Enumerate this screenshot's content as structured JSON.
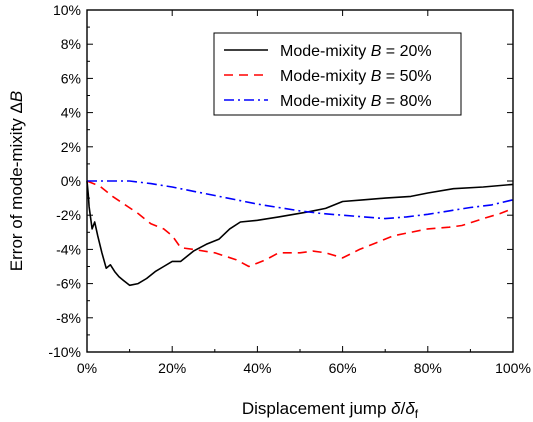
{
  "chart_data": {
    "type": "line",
    "xlabel": "Displacement jump δ/δ_f",
    "ylabel": "Error of mode-mixity ΔB",
    "xlim": [
      0,
      100
    ],
    "ylim": [
      -10,
      10
    ],
    "x_ticks": [
      0,
      20,
      40,
      60,
      80,
      100
    ],
    "y_ticks": [
      -10,
      -8,
      -6,
      -4,
      -2,
      0,
      2,
      4,
      6,
      8,
      10
    ],
    "x_tick_labels": [
      "0%",
      "20%",
      "40%",
      "60%",
      "80%",
      "100%"
    ],
    "y_tick_labels": [
      "-10%",
      "-8%",
      "-6%",
      "-4%",
      "-2%",
      "0%",
      "2%",
      "4%",
      "6%",
      "8%",
      "10%"
    ],
    "legend_position": "top-right",
    "series": [
      {
        "name": "Mode-mixity B = 20%",
        "color": "#000000",
        "style": "solid",
        "points": [
          [
            0,
            0
          ],
          [
            0.3,
            -0.8
          ],
          [
            0.5,
            -1.5
          ],
          [
            1.2,
            -2.8
          ],
          [
            1.8,
            -2.4
          ],
          [
            2.5,
            -3.2
          ],
          [
            3.5,
            -4.2
          ],
          [
            4.5,
            -5.1
          ],
          [
            5.5,
            -4.9
          ],
          [
            6.5,
            -5.3
          ],
          [
            7.5,
            -5.6
          ],
          [
            8.5,
            -5.8
          ],
          [
            10,
            -6.1
          ],
          [
            12,
            -6.0
          ],
          [
            14,
            -5.7
          ],
          [
            16,
            -5.3
          ],
          [
            18,
            -5.0
          ],
          [
            20,
            -4.7
          ],
          [
            22,
            -4.7
          ],
          [
            25,
            -4.1
          ],
          [
            28,
            -3.7
          ],
          [
            31,
            -3.4
          ],
          [
            33.5,
            -2.8
          ],
          [
            36,
            -2.4
          ],
          [
            40,
            -2.3
          ],
          [
            45,
            -2.1
          ],
          [
            52,
            -1.8
          ],
          [
            56,
            -1.6
          ],
          [
            60,
            -1.2
          ],
          [
            65,
            -1.1
          ],
          [
            70,
            -1.0
          ],
          [
            76,
            -0.9
          ],
          [
            80,
            -0.7
          ],
          [
            86,
            -0.45
          ],
          [
            93,
            -0.35
          ],
          [
            100,
            -0.2
          ]
        ]
      },
      {
        "name": "Mode-mixity B = 50%",
        "color": "#ff0000",
        "style": "dashed",
        "points": [
          [
            0,
            0
          ],
          [
            3,
            -0.3
          ],
          [
            6,
            -0.9
          ],
          [
            9,
            -1.4
          ],
          [
            12,
            -1.9
          ],
          [
            15,
            -2.5
          ],
          [
            18,
            -2.8
          ],
          [
            20,
            -3.2
          ],
          [
            22,
            -3.9
          ],
          [
            25,
            -4.0
          ],
          [
            30,
            -4.2
          ],
          [
            35,
            -4.6
          ],
          [
            38,
            -5.0
          ],
          [
            40,
            -4.8
          ],
          [
            42,
            -4.6
          ],
          [
            45,
            -4.2
          ],
          [
            50,
            -4.2
          ],
          [
            53,
            -4.1
          ],
          [
            56,
            -4.2
          ],
          [
            60,
            -4.5
          ],
          [
            64,
            -4.0
          ],
          [
            68,
            -3.6
          ],
          [
            72,
            -3.2
          ],
          [
            76,
            -3.0
          ],
          [
            80,
            -2.8
          ],
          [
            85,
            -2.7
          ],
          [
            88,
            -2.6
          ],
          [
            93,
            -2.2
          ],
          [
            97,
            -1.9
          ],
          [
            100,
            -1.6
          ]
        ]
      },
      {
        "name": "Mode-mixity B = 80%",
        "color": "#0000ff",
        "style": "dashdot",
        "points": [
          [
            0,
            0
          ],
          [
            5,
            0
          ],
          [
            10,
            0
          ],
          [
            15,
            -0.15
          ],
          [
            20,
            -0.35
          ],
          [
            25,
            -0.6
          ],
          [
            30,
            -0.85
          ],
          [
            35,
            -1.1
          ],
          [
            40,
            -1.35
          ],
          [
            45,
            -1.55
          ],
          [
            50,
            -1.75
          ],
          [
            55,
            -1.9
          ],
          [
            60,
            -2.0
          ],
          [
            65,
            -2.1
          ],
          [
            70,
            -2.2
          ],
          [
            75,
            -2.1
          ],
          [
            80,
            -1.95
          ],
          [
            85,
            -1.75
          ],
          [
            90,
            -1.55
          ],
          [
            95,
            -1.4
          ],
          [
            100,
            -1.1
          ]
        ]
      }
    ]
  }
}
